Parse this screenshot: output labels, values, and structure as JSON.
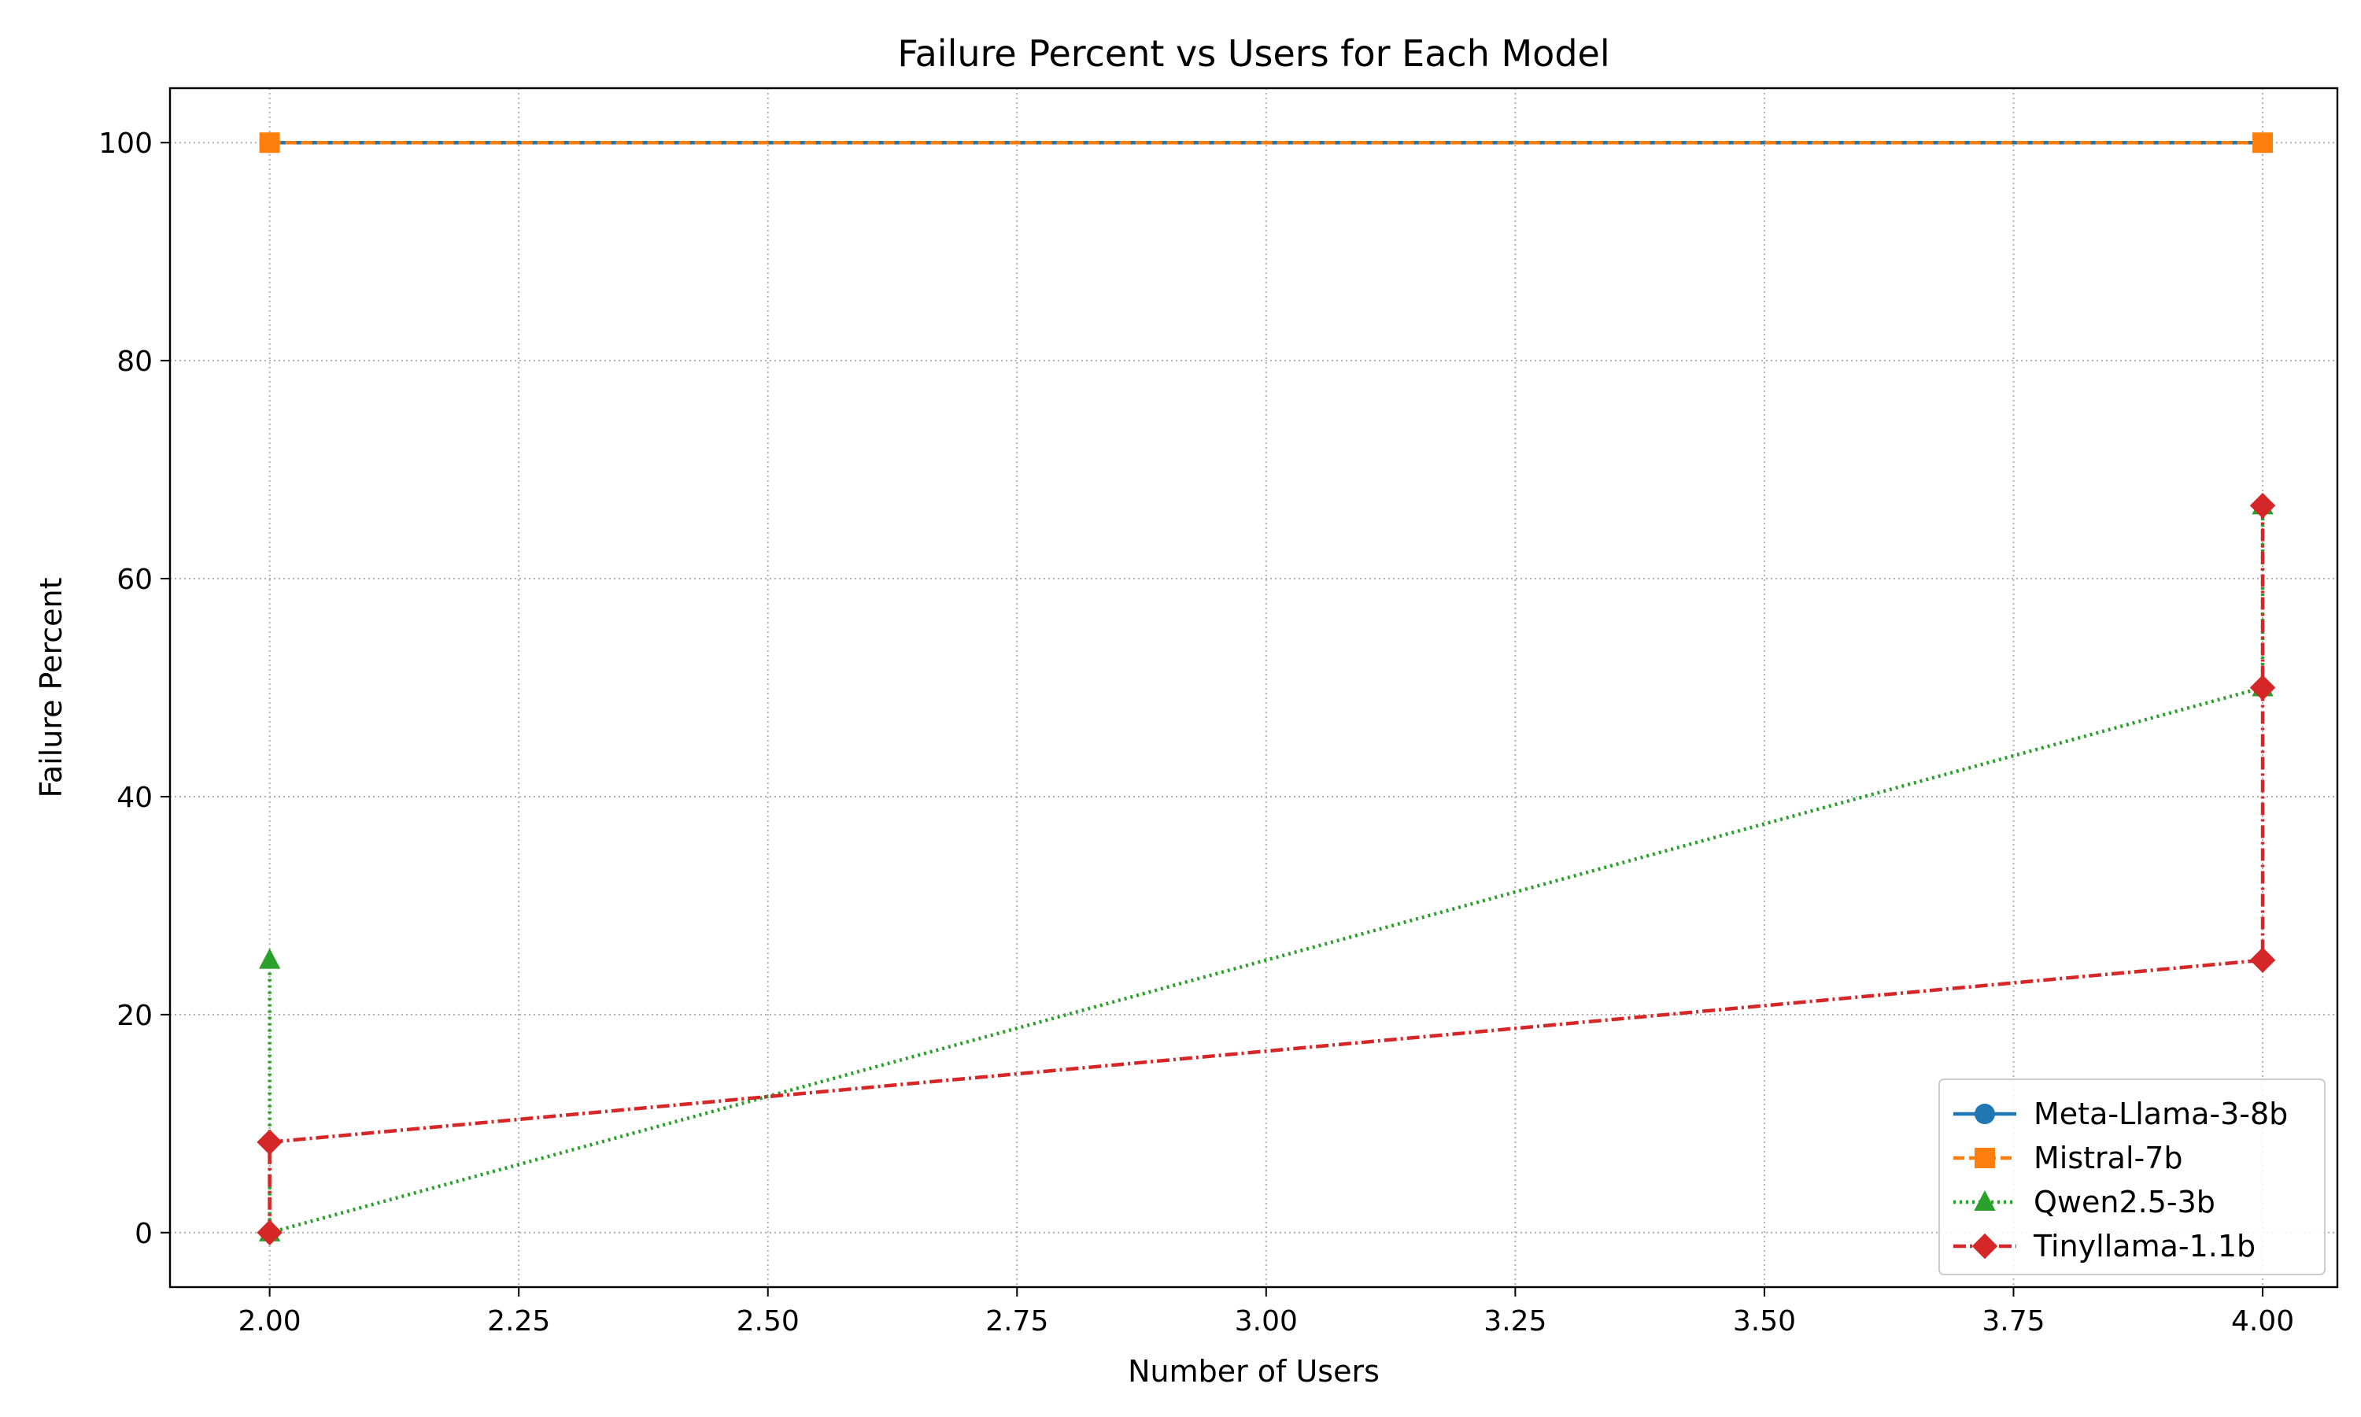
{
  "chart_data": {
    "type": "line",
    "title": "Failure Percent vs Users for Each Model",
    "xlabel": "Number of Users",
    "ylabel": "Failure Percent",
    "xlim": [
      1.9,
      4.075
    ],
    "ylim": [
      -5,
      105
    ],
    "xticks": [
      "2.00",
      "2.25",
      "2.50",
      "2.75",
      "3.00",
      "3.25",
      "3.50",
      "3.75",
      "4.00"
    ],
    "yticks": [
      "0",
      "20",
      "40",
      "60",
      "80",
      "100"
    ],
    "grid": true,
    "legend_position": "lower-right",
    "series": [
      {
        "name": "Meta-Llama-3-8b",
        "color": "#1f77b4",
        "marker": "circle",
        "linestyle": "solid",
        "x": [
          2,
          4
        ],
        "y": [
          100,
          100
        ]
      },
      {
        "name": "Mistral-7b",
        "color": "#ff7f0e",
        "marker": "square",
        "linestyle": "dashed",
        "x": [
          2,
          4
        ],
        "y": [
          100,
          100
        ]
      },
      {
        "name": "Qwen2.5-3b",
        "color": "#2ca02c",
        "marker": "triangle",
        "linestyle": "dotted",
        "x": [
          2,
          2,
          4,
          4
        ],
        "y": [
          25,
          0,
          50,
          66.7
        ]
      },
      {
        "name": "Tinyllama-1.1b",
        "color": "#d62728",
        "marker": "diamond",
        "linestyle": "dashdot",
        "x": [
          2,
          2,
          4,
          4,
          4
        ],
        "y": [
          0,
          8.3,
          25,
          50,
          66.7
        ]
      }
    ]
  }
}
